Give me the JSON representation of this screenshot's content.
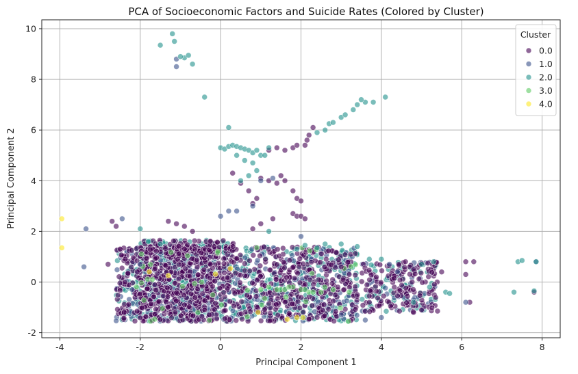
{
  "chart_data": {
    "type": "scatter",
    "title": "PCA of Socioeconomic Factors and Suicide Rates (Colored by Cluster)",
    "xlabel": "Principal Component 1",
    "ylabel": "Principal Component 2",
    "xlim": [
      -4.45,
      8.45
    ],
    "ylim": [
      -2.2,
      10.35
    ],
    "xticks": [
      -4,
      -2,
      0,
      2,
      4,
      6,
      8
    ],
    "yticks": [
      -2,
      0,
      2,
      4,
      6,
      8,
      10
    ],
    "grid": true,
    "legend": {
      "title": "Cluster",
      "placement": "top-right",
      "entries": [
        "0.0",
        "1.0",
        "2.0",
        "3.0",
        "4.0"
      ]
    },
    "colors": [
      "#440154",
      "#3b528b",
      "#21918c",
      "#5ec962",
      "#fde725"
    ],
    "marker_alpha": 0.6,
    "series": [
      {
        "name": "0.0",
        "points": [
          [
            0.3,
            4.3
          ],
          [
            0.5,
            3.9
          ],
          [
            0.7,
            3.6
          ],
          [
            0.9,
            3.3
          ],
          [
            0.8,
            3.1
          ],
          [
            1.0,
            4.1
          ],
          [
            1.2,
            4.0
          ],
          [
            1.4,
            3.9
          ],
          [
            1.5,
            4.2
          ],
          [
            1.6,
            4.0
          ],
          [
            1.8,
            3.6
          ],
          [
            1.9,
            3.3
          ],
          [
            2.0,
            3.2
          ],
          [
            1.8,
            2.7
          ],
          [
            1.9,
            2.6
          ],
          [
            2.0,
            2.6
          ],
          [
            2.1,
            2.5
          ],
          [
            1.6,
            5.2
          ],
          [
            1.8,
            5.3
          ],
          [
            1.9,
            5.4
          ],
          [
            2.1,
            5.4
          ],
          [
            2.15,
            5.6
          ],
          [
            2.2,
            5.8
          ],
          [
            2.3,
            6.1
          ],
          [
            1.2,
            5.2
          ],
          [
            1.4,
            5.3
          ],
          [
            0.8,
            2.1
          ],
          [
            1.0,
            2.3
          ],
          [
            1.3,
            2.5
          ],
          [
            -1.3,
            2.4
          ],
          [
            -1.1,
            2.3
          ],
          [
            -0.9,
            2.2
          ],
          [
            -0.7,
            2.0
          ],
          [
            -2.7,
            2.4
          ],
          [
            -2.6,
            2.2
          ],
          [
            -2.8,
            0.7
          ],
          [
            -2.5,
            1.3
          ],
          [
            4.6,
            0.8
          ],
          [
            4.8,
            0.5
          ],
          [
            5.5,
            0.4
          ],
          [
            6.1,
            0.8
          ],
          [
            6.3,
            0.8
          ],
          [
            6.1,
            0.3
          ],
          [
            4.8,
            -1.2
          ],
          [
            5.0,
            -1.1
          ],
          [
            7.8,
            -0.4
          ],
          [
            -2.4,
            -1.2
          ],
          [
            6.2,
            -0.8
          ],
          [
            3.7,
            -0.8
          ],
          [
            3.0,
            0.6
          ],
          [
            3.2,
            0.3
          ],
          [
            3.4,
            -0.5
          ]
        ]
      },
      {
        "name": "1.0",
        "points": [
          [
            -1.1,
            8.5
          ],
          [
            -1.1,
            8.8
          ],
          [
            0.0,
            2.6
          ],
          [
            0.2,
            2.8
          ],
          [
            0.4,
            2.8
          ],
          [
            0.8,
            3.0
          ],
          [
            -2.45,
            2.5
          ],
          [
            -3.35,
            2.1
          ],
          [
            -3.4,
            0.6
          ],
          [
            1.0,
            4.0
          ],
          [
            1.3,
            4.1
          ],
          [
            2.0,
            1.8
          ],
          [
            4.2,
            0.7
          ],
          [
            4.4,
            0.4
          ],
          [
            4.0,
            -1.4
          ],
          [
            3.6,
            -1.5
          ],
          [
            6.1,
            -0.8
          ],
          [
            7.85,
            0.8
          ],
          [
            -2.0,
            0.7
          ],
          [
            -2.2,
            -0.3
          ],
          [
            3.0,
            -1.3
          ]
        ]
      },
      {
        "name": "2.0",
        "points": [
          [
            -1.2,
            9.8
          ],
          [
            -1.15,
            9.5
          ],
          [
            -1.5,
            9.35
          ],
          [
            -0.9,
            8.85
          ],
          [
            -1.0,
            8.9
          ],
          [
            -0.8,
            8.95
          ],
          [
            -0.7,
            8.6
          ],
          [
            -0.4,
            7.3
          ],
          [
            0.2,
            6.1
          ],
          [
            0.0,
            5.3
          ],
          [
            0.1,
            5.25
          ],
          [
            0.2,
            5.35
          ],
          [
            0.3,
            5.4
          ],
          [
            0.4,
            5.35
          ],
          [
            0.5,
            5.3
          ],
          [
            0.6,
            5.25
          ],
          [
            0.7,
            5.2
          ],
          [
            0.8,
            5.1
          ],
          [
            0.9,
            5.2
          ],
          [
            1.0,
            5.0
          ],
          [
            1.1,
            5.0
          ],
          [
            1.2,
            5.3
          ],
          [
            0.4,
            5.0
          ],
          [
            0.6,
            4.8
          ],
          [
            0.8,
            4.7
          ],
          [
            0.9,
            4.4
          ],
          [
            0.7,
            4.2
          ],
          [
            0.5,
            4.0
          ],
          [
            2.4,
            5.9
          ],
          [
            2.6,
            6.0
          ],
          [
            2.7,
            6.25
          ],
          [
            2.8,
            6.3
          ],
          [
            3.0,
            6.5
          ],
          [
            3.1,
            6.6
          ],
          [
            3.3,
            6.8
          ],
          [
            3.4,
            7.0
          ],
          [
            3.6,
            7.1
          ],
          [
            3.5,
            7.2
          ],
          [
            3.8,
            7.1
          ],
          [
            4.1,
            7.3
          ],
          [
            -2.0,
            2.1
          ],
          [
            1.2,
            2.0
          ],
          [
            -1.8,
            1.6
          ],
          [
            -1.5,
            1.5
          ],
          [
            7.4,
            0.8
          ],
          [
            7.5,
            0.85
          ],
          [
            7.85,
            0.8
          ],
          [
            7.3,
            -0.4
          ],
          [
            7.8,
            -0.35
          ],
          [
            5.6,
            -0.4
          ],
          [
            5.7,
            -0.45
          ],
          [
            5.3,
            0.8
          ],
          [
            5.0,
            0.7
          ],
          [
            5.2,
            -0.2
          ],
          [
            4.8,
            -0.8
          ],
          [
            2.6,
            1.5
          ],
          [
            3.0,
            1.5
          ],
          [
            3.4,
            1.4
          ],
          [
            3.7,
            0.9
          ],
          [
            4.0,
            0.9
          ],
          [
            1.9,
            1.3
          ],
          [
            2.1,
            1.45
          ],
          [
            2.4,
            1.35
          ]
        ]
      },
      {
        "name": "3.0",
        "points": [
          [
            -1.7,
            0.1
          ],
          [
            1.0,
            -0.3
          ],
          [
            1.2,
            -0.2
          ],
          [
            1.5,
            -0.3
          ],
          [
            1.6,
            -0.3
          ],
          [
            1.8,
            -0.2
          ],
          [
            2.0,
            -0.3
          ],
          [
            2.2,
            -0.4
          ],
          [
            2.3,
            -0.4
          ],
          [
            2.5,
            -0.4
          ],
          [
            2.8,
            -0.3
          ],
          [
            3.2,
            -0.4
          ],
          [
            1.7,
            -0.2
          ],
          [
            1.4,
            -0.3
          ],
          [
            2.1,
            -0.3
          ]
        ]
      },
      {
        "name": "4.0",
        "points": [
          [
            -3.95,
            2.5
          ],
          [
            -3.95,
            1.35
          ],
          [
            1.9,
            -1.4
          ],
          [
            2.05,
            -1.4
          ]
        ]
      }
    ]
  }
}
